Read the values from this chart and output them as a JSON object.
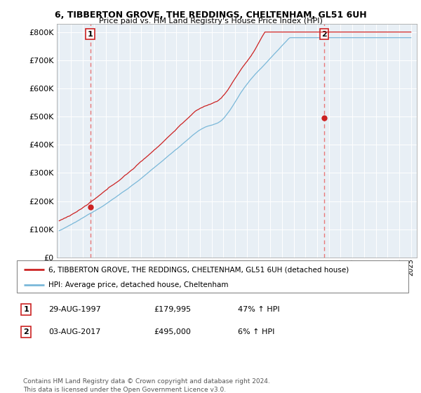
{
  "title1": "6, TIBBERTON GROVE, THE REDDINGS, CHELTENHAM, GL51 6UH",
  "title2": "Price paid vs. HM Land Registry's House Price Index (HPI)",
  "ylabel_ticks": [
    "£0",
    "£100K",
    "£200K",
    "£300K",
    "£400K",
    "£500K",
    "£600K",
    "£700K",
    "£800K"
  ],
  "ytick_values": [
    0,
    100000,
    200000,
    300000,
    400000,
    500000,
    600000,
    700000,
    800000
  ],
  "ylim": [
    0,
    830000
  ],
  "xlim_start": 1994.8,
  "xlim_end": 2025.5,
  "sale1_date": 1997.66,
  "sale1_price": 179995,
  "sale1_label": "1",
  "sale2_date": 2017.59,
  "sale2_price": 495000,
  "sale2_label": "2",
  "hpi_color": "#7ab8d9",
  "price_color": "#cc2222",
  "vline_color": "#e87878",
  "background_chart": "#e8eff5",
  "background_fig": "#ffffff",
  "grid_color": "#ffffff",
  "legend_line1": "6, TIBBERTON GROVE, THE REDDINGS, CHELTENHAM, GL51 6UH (detached house)",
  "legend_line2": "HPI: Average price, detached house, Cheltenham",
  "table_row1": [
    "1",
    "29-AUG-1997",
    "£179,995",
    "47% ↑ HPI"
  ],
  "table_row2": [
    "2",
    "03-AUG-2017",
    "£495,000",
    "6% ↑ HPI"
  ],
  "footer": "Contains HM Land Registry data © Crown copyright and database right 2024.\nThis data is licensed under the Open Government Licence v3.0."
}
